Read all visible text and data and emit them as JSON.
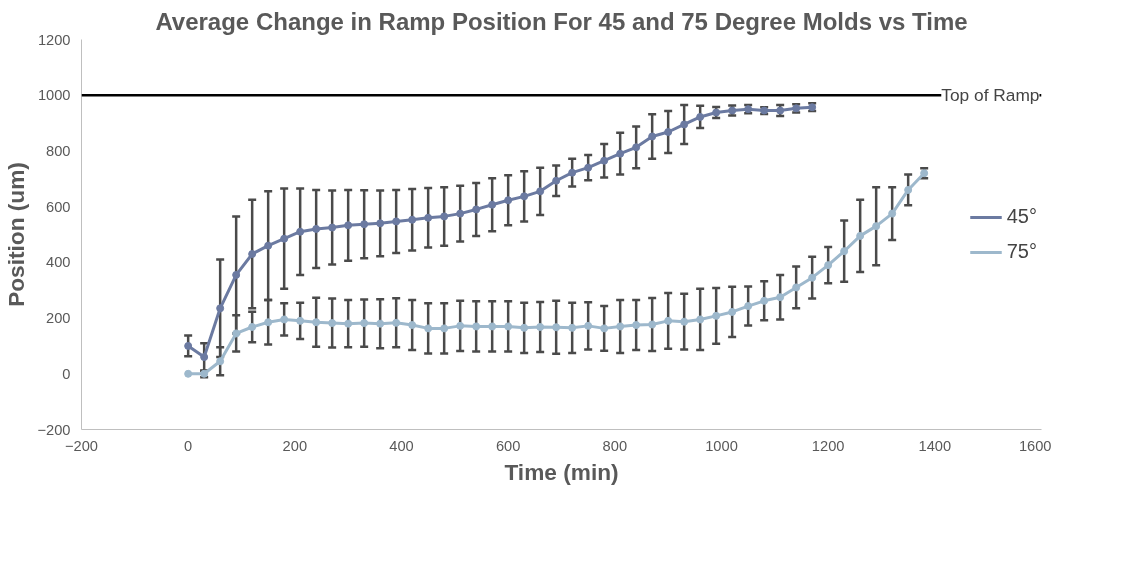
{
  "chart_data": {
    "type": "line",
    "title": "Average Change in Ramp Position For 45 and 75 Degree Molds vs Time",
    "xlabel": "Time (min)",
    "ylabel": "Position (um)",
    "xlim": [
      -200,
      1600
    ],
    "xticks": [
      -200,
      0,
      200,
      400,
      600,
      800,
      1000,
      1200,
      1400,
      1600
    ],
    "ylim": [
      -200,
      1200
    ],
    "yticks": [
      -200,
      0,
      200,
      400,
      600,
      800,
      1000,
      1200
    ],
    "grid": false,
    "legend": "right",
    "marker": "circle",
    "line_style": "solid",
    "ref_lines": [
      {
        "axis": "y",
        "value": 1000,
        "label": "Top of Ramp",
        "color": "#000000"
      }
    ],
    "series": [
      {
        "name": "45°",
        "color": "#6b7aa1",
        "x": [
          0,
          30,
          60,
          90,
          120,
          150,
          180,
          210,
          240,
          270,
          300,
          330,
          360,
          390,
          420,
          450,
          480,
          510,
          540,
          570,
          600,
          630,
          660,
          690,
          720,
          750,
          780,
          810,
          840,
          870,
          900,
          930,
          960,
          990,
          1020,
          1050,
          1080,
          1110,
          1140,
          1170
        ],
        "values": [
          100,
          60,
          235,
          355,
          430,
          460,
          485,
          510,
          520,
          525,
          533,
          537,
          540,
          547,
          553,
          560,
          565,
          575,
          590,
          607,
          623,
          637,
          655,
          693,
          722,
          740,
          765,
          790,
          813,
          852,
          868,
          895,
          922,
          938,
          945,
          950,
          945,
          945,
          953,
          957
        ],
        "errors": [
          37,
          50,
          175,
          210,
          195,
          195,
          180,
          155,
          140,
          133,
          127,
          122,
          118,
          113,
          110,
          107,
          105,
          100,
          95,
          95,
          90,
          90,
          85,
          55,
          50,
          45,
          60,
          75,
          75,
          80,
          75,
          70,
          40,
          20,
          18,
          15,
          12,
          20,
          15,
          14
        ]
      },
      {
        "name": "75°",
        "color": "#9db8cc",
        "x": [
          0,
          30,
          60,
          90,
          120,
          150,
          180,
          210,
          240,
          270,
          300,
          330,
          360,
          390,
          420,
          450,
          480,
          510,
          540,
          570,
          600,
          630,
          660,
          690,
          720,
          750,
          780,
          810,
          840,
          870,
          900,
          930,
          960,
          990,
          1020,
          1050,
          1080,
          1110,
          1140,
          1170,
          1200,
          1230,
          1260,
          1290,
          1320,
          1350,
          1380
        ],
        "values": [
          0,
          0,
          45,
          145,
          168,
          185,
          195,
          190,
          185,
          182,
          180,
          182,
          180,
          183,
          175,
          163,
          163,
          172,
          170,
          170,
          170,
          165,
          168,
          167,
          165,
          172,
          163,
          170,
          175,
          177,
          190,
          187,
          195,
          208,
          222,
          243,
          262,
          275,
          310,
          345,
          390,
          440,
          495,
          530,
          575,
          660,
          720
        ],
        "errors": [
          null,
          12,
          50,
          65,
          55,
          80,
          58,
          65,
          88,
          88,
          85,
          85,
          88,
          88,
          90,
          90,
          90,
          90,
          90,
          90,
          90,
          90,
          90,
          95,
          90,
          85,
          80,
          95,
          90,
          95,
          100,
          100,
          110,
          100,
          90,
          70,
          70,
          80,
          75,
          75,
          65,
          110,
          130,
          140,
          95,
          55,
          18
        ]
      }
    ]
  }
}
